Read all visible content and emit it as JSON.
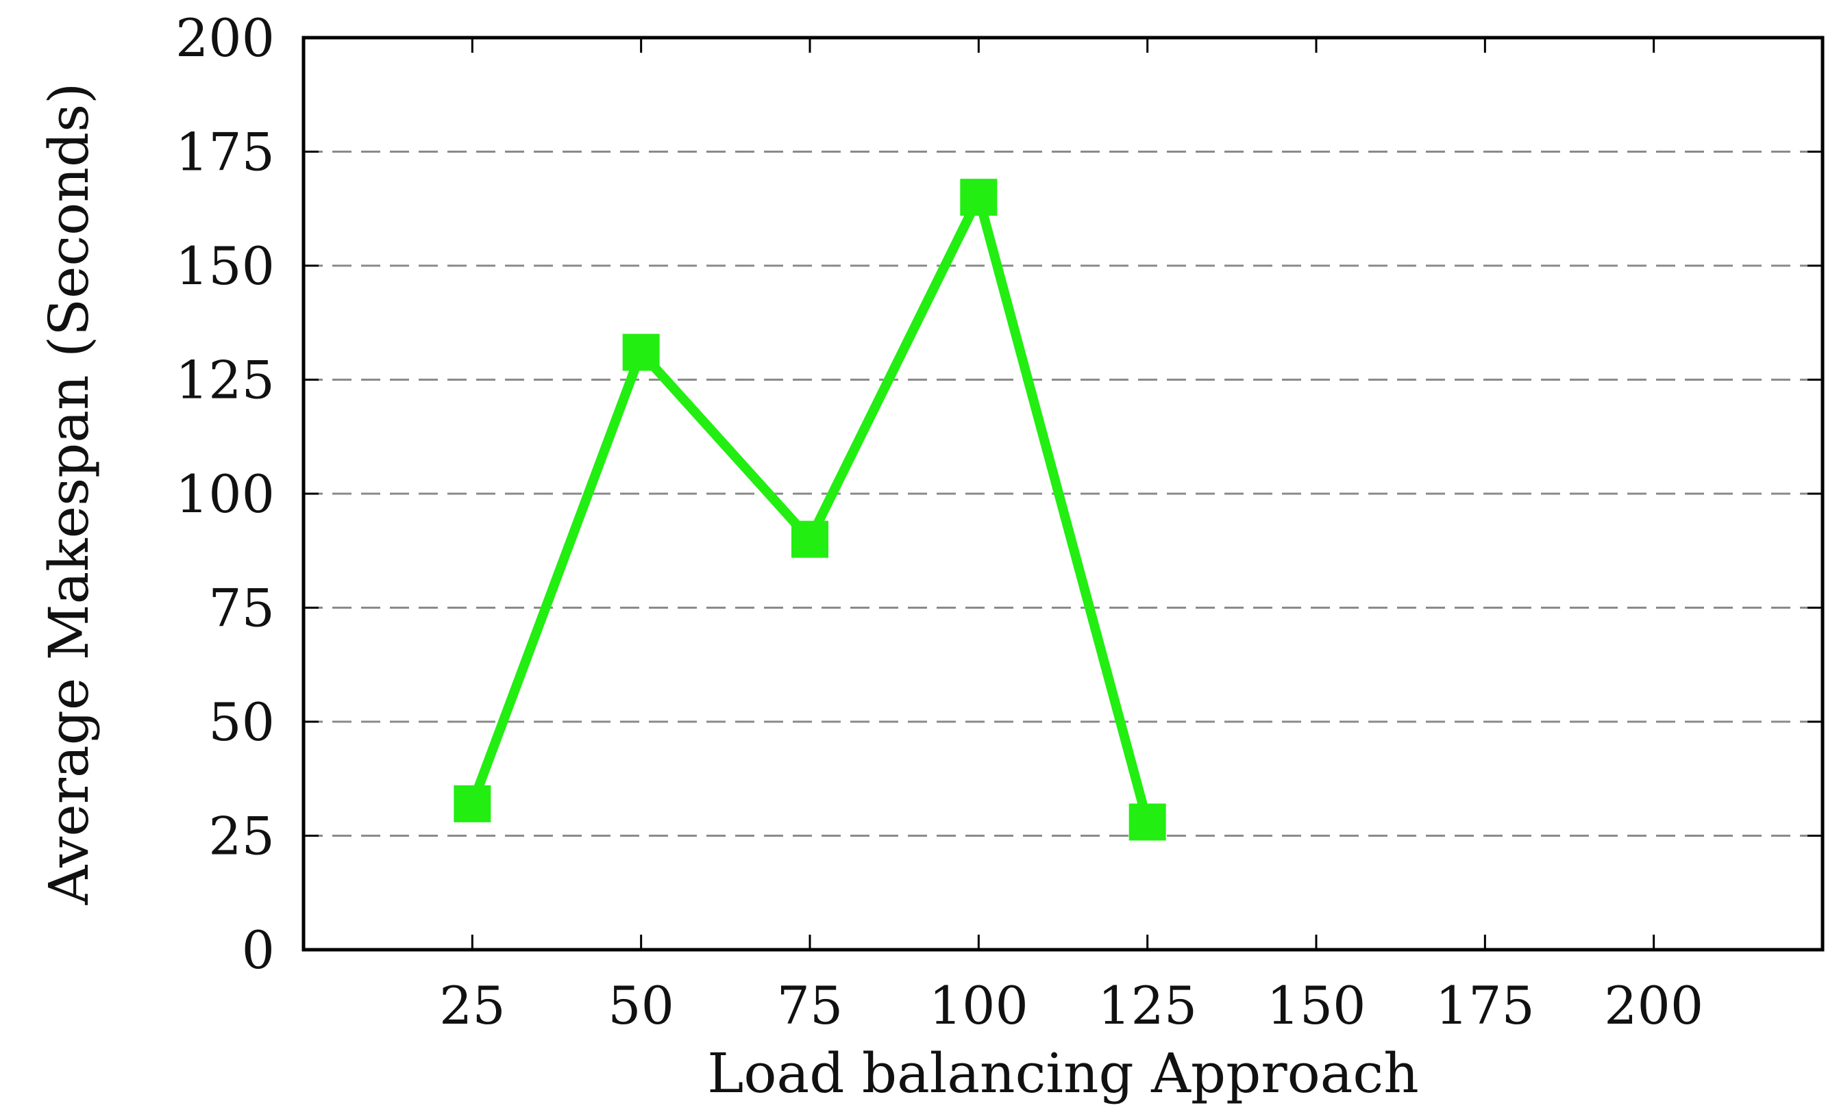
{
  "chart_data": {
    "type": "line",
    "title": "",
    "xlabel": "Load balancing Approach",
    "ylabel": "Average Makespan (Seconds)",
    "xlim": [
      0,
      225
    ],
    "ylim": [
      0,
      200
    ],
    "x_ticks": [
      25,
      50,
      75,
      100,
      125,
      150,
      175,
      200
    ],
    "y_ticks": [
      0,
      25,
      50,
      75,
      100,
      125,
      150,
      175,
      200
    ],
    "grid": "horizontal-dashed",
    "legend": "none",
    "series": [
      {
        "color": "#22ee11",
        "marker": "square",
        "x": [
          25,
          50,
          75,
          100,
          125
        ],
        "y": [
          32,
          131,
          90,
          165,
          28
        ]
      }
    ]
  }
}
